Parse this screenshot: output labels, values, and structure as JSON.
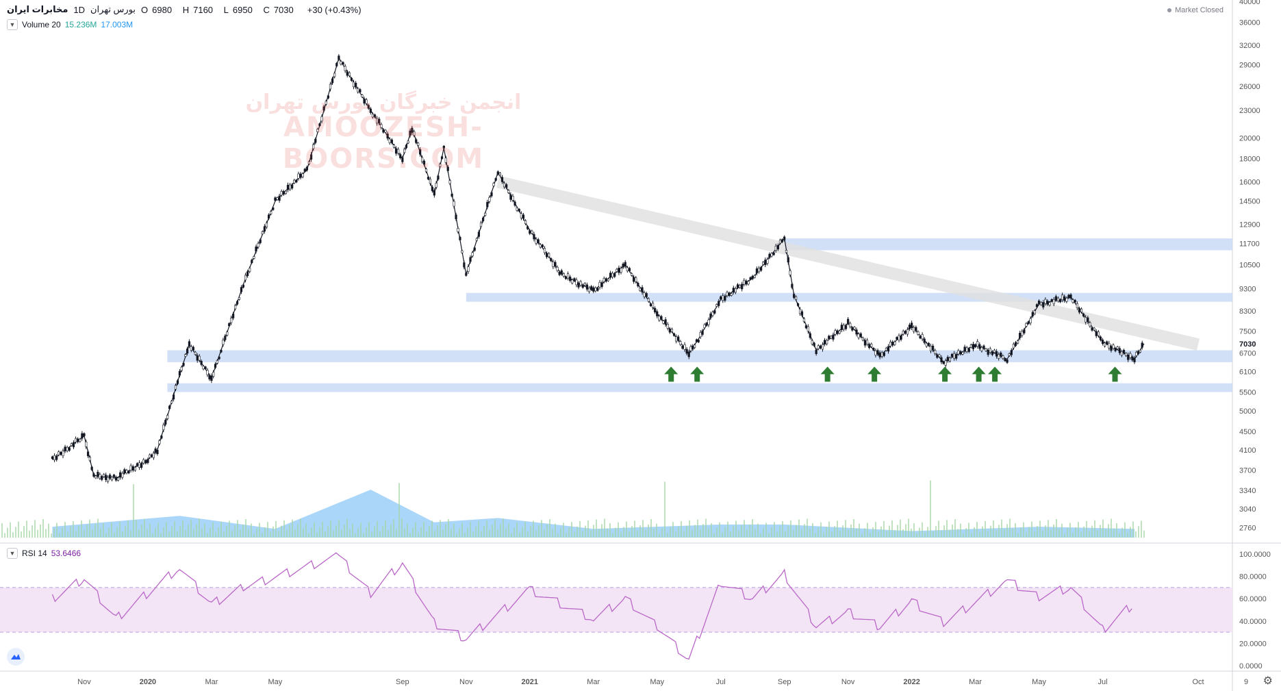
{
  "header": {
    "symbol": "مخابرات ایران",
    "interval": "1D",
    "exchange": "بورس تهران",
    "open_label": "O",
    "open": "6980",
    "high_label": "H",
    "high": "7160",
    "low_label": "L",
    "low": "6950",
    "close_label": "C",
    "close": "7030",
    "change": "+30 (+0.43%)"
  },
  "market_status": "Market Closed",
  "volume_legend": {
    "label": "Volume 20",
    "value1": "15.236M",
    "value2": "17.003M"
  },
  "rsi_legend": {
    "label": "RSI 14",
    "value": "53.6466"
  },
  "watermark": {
    "line1": "انجمن خبرگان بورس تهران",
    "line2": "AMOOZESH-BOORS.COM"
  },
  "price_axis": {
    "labels": [
      "40000",
      "36000",
      "32000",
      "29000",
      "26000",
      "23000",
      "20000",
      "18000",
      "16000",
      "14500",
      "12900",
      "11700",
      "10500",
      "9300",
      "8300",
      "7500",
      "7030",
      "6700",
      "6100",
      "5500",
      "5000",
      "4500",
      "4100",
      "3700",
      "3340",
      "3040",
      "2760"
    ],
    "current": "7030"
  },
  "rsi_axis": {
    "labels": [
      "100.0000",
      "80.0000",
      "60.0000",
      "40.0000",
      "20.0000",
      "0.0000"
    ]
  },
  "time_axis": {
    "labels": [
      "Nov",
      "2020",
      "Mar",
      "May",
      "Sep",
      "Nov",
      "2021",
      "Mar",
      "May",
      "Jul",
      "Sep",
      "Nov",
      "2022",
      "Mar",
      "May",
      "Jul",
      "Oct",
      "9"
    ]
  },
  "colors": {
    "candle_up": "#131722",
    "candle_down": "#131722",
    "zone": "#c9dbf6",
    "trendline": "#e0e0e0",
    "arrow": "#2e7d32",
    "vol_area": "#64b5f6",
    "vol_up": "#a5d6a7",
    "vol_down": "#ef9a9a",
    "rsi_line": "#ba68c8",
    "rsi_band": "#f3e5f5"
  },
  "chart_data": {
    "type": "candlestick",
    "price_scale": "log",
    "ylim": [
      2700,
      40000
    ],
    "support_resistance_zones": [
      [
        11300,
        12000
      ],
      [
        8700,
        9100
      ],
      [
        6400,
        6800
      ],
      [
        5500,
        5750
      ]
    ],
    "trendline": {
      "from": {
        "date": "2020-12",
        "price": 16000
      },
      "to": {
        "date": "2022-10",
        "price": 7000
      }
    },
    "bounce_arrows": [
      "2021-06",
      "2021-06",
      "2021-11",
      "2021-12",
      "2022-02",
      "2022-03",
      "2022-04",
      "2022-07"
    ],
    "price_path": [
      [
        "2019-10",
        3900
      ],
      [
        "2019-11",
        4400
      ],
      [
        "2019-11",
        3600
      ],
      [
        "2019-12",
        3550
      ],
      [
        "2020-01",
        3900
      ],
      [
        "2020-01",
        4100
      ],
      [
        "2020-02",
        6000
      ],
      [
        "2020-02",
        7000
      ],
      [
        "2020-03",
        5900
      ],
      [
        "2020-03",
        6800
      ],
      [
        "2020-04",
        9500
      ],
      [
        "2020-05",
        14500
      ],
      [
        "2020-06",
        17000
      ],
      [
        "2020-07",
        30000
      ],
      [
        "2020-08",
        23000
      ],
      [
        "2020-09",
        18000
      ],
      [
        "2020-09",
        21000
      ],
      [
        "2020-10",
        15000
      ],
      [
        "2020-10",
        19000
      ],
      [
        "2020-11",
        10000
      ],
      [
        "2020-12",
        16800
      ],
      [
        "2021-01",
        12500
      ],
      [
        "2021-02",
        10000
      ],
      [
        "2021-03",
        9200
      ],
      [
        "2021-04",
        10500
      ],
      [
        "2021-05",
        8200
      ],
      [
        "2021-06",
        6700
      ],
      [
        "2021-06",
        7200
      ],
      [
        "2021-07",
        8800
      ],
      [
        "2021-08",
        9800
      ],
      [
        "2021-09",
        12000
      ],
      [
        "2021-09",
        9000
      ],
      [
        "2021-10",
        6800
      ],
      [
        "2021-11",
        7800
      ],
      [
        "2021-12",
        6600
      ],
      [
        "2022-01",
        7700
      ],
      [
        "2022-02",
        6400
      ],
      [
        "2022-03",
        7000
      ],
      [
        "2022-04",
        6500
      ],
      [
        "2022-05",
        8600
      ],
      [
        "2022-06",
        8900
      ],
      [
        "2022-07",
        7100
      ],
      [
        "2022-08",
        6500
      ],
      [
        "2022-08",
        7030
      ]
    ],
    "volume_ma": [
      [
        "2019-10",
        0.5
      ],
      [
        "2020-02",
        1.0
      ],
      [
        "2020-05",
        0.4
      ],
      [
        "2020-08",
        2.2
      ],
      [
        "2020-10",
        0.7
      ],
      [
        "2020-12",
        0.9
      ],
      [
        "2021-03",
        0.4
      ],
      [
        "2021-07",
        0.6
      ],
      [
        "2021-09",
        0.6
      ],
      [
        "2022-01",
        0.3
      ],
      [
        "2022-05",
        0.5
      ],
      [
        "2022-08",
        0.4
      ]
    ],
    "rsi": [
      [
        "2019-10",
        60
      ],
      [
        "2019-11",
        78
      ],
      [
        "2019-12",
        42
      ],
      [
        "2020-02",
        88
      ],
      [
        "2020-03",
        55
      ],
      [
        "2020-04",
        70
      ],
      [
        "2020-07",
        98
      ],
      [
        "2020-08",
        65
      ],
      [
        "2020-09",
        92
      ],
      [
        "2020-10",
        38
      ],
      [
        "2020-11",
        24
      ],
      [
        "2021-01",
        68
      ],
      [
        "2021-03",
        42
      ],
      [
        "2021-04",
        60
      ],
      [
        "2021-05",
        35
      ],
      [
        "2021-06",
        5
      ],
      [
        "2021-07",
        75
      ],
      [
        "2021-08",
        60
      ],
      [
        "2021-09",
        82
      ],
      [
        "2021-10",
        35
      ],
      [
        "2021-11",
        48
      ],
      [
        "2021-12",
        35
      ],
      [
        "2022-01",
        58
      ],
      [
        "2022-02",
        38
      ],
      [
        "2022-04",
        76
      ],
      [
        "2022-05",
        62
      ],
      [
        "2022-06",
        70
      ],
      [
        "2022-07",
        32
      ],
      [
        "2022-08",
        56
      ]
    ],
    "rsi_bands": [
      30,
      70
    ]
  }
}
